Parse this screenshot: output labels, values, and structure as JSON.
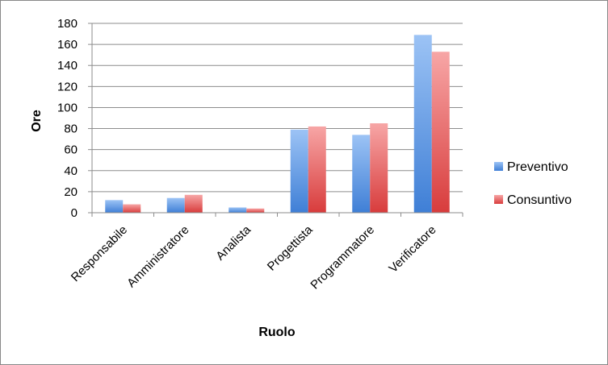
{
  "chart_data": {
    "type": "bar",
    "categories": [
      "Responsabile",
      "Amministratore",
      "Analista",
      "Progettista",
      "Programmatore",
      "Verificatore"
    ],
    "series": [
      {
        "name": "Preventivo",
        "values": [
          12,
          14,
          5,
          79,
          74,
          169
        ],
        "color": "#5b8fdc"
      },
      {
        "name": "Consuntivo",
        "values": [
          8,
          17,
          4,
          82,
          85,
          153
        ],
        "color": "#e05a5a"
      }
    ],
    "xlabel": "Ruolo",
    "ylabel": "Ore",
    "ylim": [
      0,
      180
    ],
    "yticks": [
      0,
      20,
      40,
      60,
      80,
      100,
      120,
      140,
      160,
      180
    ],
    "grid": true,
    "legend": "right"
  }
}
